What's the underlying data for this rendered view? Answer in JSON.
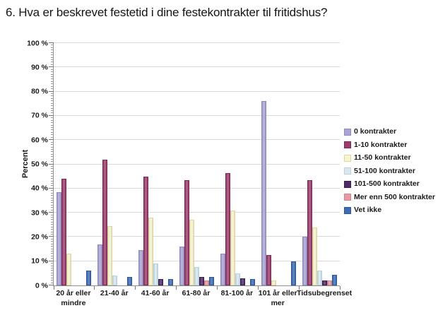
{
  "title": "6. Hva er beskrevet festetid i dine festekontrakter til fritidshus?",
  "chart_data": {
    "type": "bar",
    "title": "6. Hva er beskrevet festetid i dine festekontrakter til fritidshus?",
    "xlabel": "",
    "ylabel": "Percent",
    "ylim": [
      0,
      100
    ],
    "ytick_step": 10,
    "ytick_labels": [
      "0 %",
      "10 %",
      "20 %",
      "30 %",
      "40 %",
      "50 %",
      "60 %",
      "70 %",
      "80 %",
      "90 %",
      "100 %"
    ],
    "grid": true,
    "legend_position": "right",
    "categories": [
      "20 år eller mindre",
      "21-40 år",
      "41-60 år",
      "61-80 år",
      "81-100 år",
      "101 år eller mer",
      "Tidsubegrenset"
    ],
    "series": [
      {
        "name": "0 kontrakter",
        "color": "#a8a4d3",
        "border": "#8f8bc2",
        "values": [
          38.5,
          17,
          14.5,
          16,
          13,
          76,
          20
        ]
      },
      {
        "name": "1-10 kontrakter",
        "color": "#9d3c6c",
        "border": "#7c2a55",
        "values": [
          44,
          52,
          45,
          43.5,
          46.5,
          12.5,
          43.5
        ]
      },
      {
        "name": "11-50 kontrakter",
        "color": "#f8f4ce",
        "border": "#ddd6a0",
        "values": [
          13,
          24.5,
          28,
          27,
          31,
          2,
          24
        ]
      },
      {
        "name": "51-100 kontrakter",
        "color": "#d7e8f0",
        "border": "#b5d3e2",
        "values": [
          0,
          4,
          9,
          7.5,
          5,
          0,
          6
        ]
      },
      {
        "name": "101-500 kontrakter",
        "color": "#4f2a68",
        "border": "#3a1d4f",
        "values": [
          0,
          0,
          2.5,
          3.5,
          3,
          0,
          2
        ]
      },
      {
        "name": "Mer enn 500 kontrakter",
        "color": "#e79ba0",
        "border": "#d28187",
        "values": [
          0,
          0,
          0,
          2,
          0,
          0,
          2
        ]
      },
      {
        "name": "Vet ikke",
        "color": "#3d6cb4",
        "border": "#2d579a",
        "values": [
          6,
          3.5,
          2.5,
          3.5,
          2.5,
          10,
          4.5
        ]
      }
    ]
  }
}
